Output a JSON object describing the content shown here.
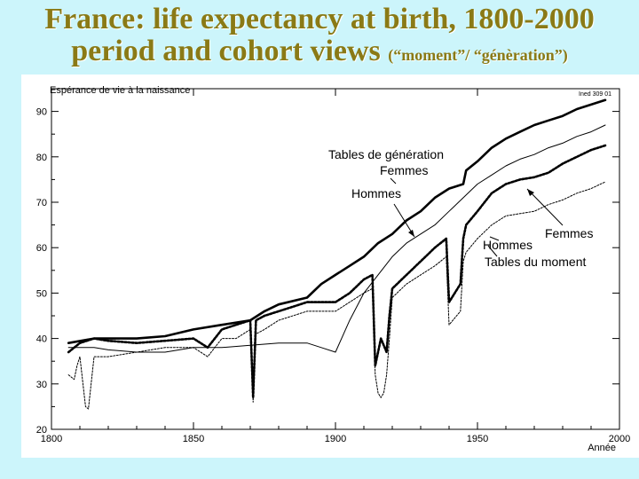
{
  "slide": {
    "title_line1": "France:  life expectancy at birth, 1800-2000",
    "title_line2_main": "period and cohort views ",
    "title_line2_small": "(“moment”/ “génèration”)"
  },
  "chart_data": {
    "type": "line",
    "title": "Espérance de vie à la naissance",
    "source_note": "Ined 309 01",
    "xlabel": "Année",
    "ylabel": "",
    "xlim": [
      1800,
      2000
    ],
    "ylim": [
      20,
      95
    ],
    "xticks": [
      1800,
      1850,
      1900,
      1950,
      2000
    ],
    "yticks": [
      20,
      30,
      40,
      50,
      60,
      70,
      80,
      90
    ],
    "grid": false,
    "annotations": [
      "Tables de génération",
      "Femmes",
      "Hommes",
      "Femmes",
      "Hommes",
      "Tables du moment"
    ],
    "series": [
      {
        "name": "Tables de génération — Femmes",
        "style": "thick-solid",
        "x": [
          1806,
          1815,
          1820,
          1830,
          1840,
          1850,
          1860,
          1870,
          1875,
          1880,
          1890,
          1895,
          1900,
          1905,
          1910,
          1915,
          1920,
          1925,
          1930,
          1935,
          1940,
          1945,
          1946,
          1950,
          1955,
          1960,
          1965,
          1970,
          1975,
          1980,
          1985,
          1990,
          1995
        ],
        "y": [
          39,
          40,
          40,
          40,
          40.5,
          42,
          43,
          44,
          46,
          47.5,
          49,
          52,
          54,
          56,
          58,
          61,
          63,
          66,
          68,
          71,
          73,
          74,
          77,
          79,
          82,
          84,
          85.5,
          87,
          88,
          89,
          90.5,
          91.5,
          92.5
        ]
      },
      {
        "name": "Tables de génération — Hommes",
        "style": "thin-solid",
        "x": [
          1806,
          1815,
          1820,
          1830,
          1840,
          1850,
          1860,
          1870,
          1880,
          1890,
          1895,
          1900,
          1905,
          1910,
          1915,
          1920,
          1925,
          1930,
          1935,
          1940,
          1945,
          1950,
          1955,
          1960,
          1965,
          1970,
          1975,
          1980,
          1985,
          1990,
          1995
        ],
        "y": [
          38,
          38,
          37.5,
          37,
          37,
          38,
          38,
          38.5,
          39,
          39,
          38,
          37,
          44,
          50,
          54,
          58,
          61,
          63,
          65,
          68,
          71,
          74,
          76,
          78,
          79.5,
          80.5,
          82,
          83,
          84.5,
          85.5,
          87
        ]
      },
      {
        "name": "Tables du moment — Femmes",
        "style": "thick-dotted",
        "x": [
          1806,
          1810,
          1815,
          1820,
          1830,
          1840,
          1850,
          1855,
          1860,
          1865,
          1870,
          1871,
          1872,
          1875,
          1880,
          1885,
          1890,
          1895,
          1900,
          1905,
          1910,
          1913,
          1914,
          1916,
          1918,
          1919,
          1920,
          1925,
          1930,
          1935,
          1939,
          1940,
          1944,
          1945,
          1946,
          1950,
          1955,
          1960,
          1965,
          1970,
          1975,
          1980,
          1985,
          1990,
          1995
        ],
        "y": [
          37,
          39,
          40,
          39.5,
          39,
          39.5,
          40,
          38,
          42,
          43,
          44,
          27,
          44,
          45,
          46,
          47,
          48,
          48,
          48,
          50,
          53,
          54,
          34,
          40,
          37,
          45,
          51,
          54,
          57,
          60,
          62,
          48,
          52,
          62,
          65,
          68,
          72,
          74,
          75,
          75.5,
          76.5,
          78.5,
          80,
          81.5,
          82.5
        ]
      },
      {
        "name": "Tables du moment — Hommes",
        "style": "thin-dotted",
        "x": [
          1806,
          1808,
          1809,
          1810,
          1812,
          1813,
          1815,
          1820,
          1830,
          1840,
          1850,
          1855,
          1860,
          1865,
          1870,
          1871,
          1872,
          1875,
          1880,
          1885,
          1890,
          1895,
          1900,
          1905,
          1910,
          1913,
          1914,
          1915,
          1916,
          1917,
          1918,
          1919,
          1920,
          1925,
          1930,
          1935,
          1939,
          1940,
          1944,
          1945,
          1946,
          1950,
          1955,
          1960,
          1965,
          1970,
          1975,
          1980,
          1985,
          1990,
          1995
        ],
        "y": [
          32,
          31,
          34,
          36,
          25,
          24.5,
          36,
          36,
          37,
          38,
          38,
          36,
          40,
          40,
          42,
          26,
          41,
          42,
          44,
          45,
          46,
          46,
          46,
          48,
          50,
          51,
          32,
          28,
          27,
          28,
          32,
          40,
          49,
          52,
          54,
          56,
          58,
          43,
          46,
          57,
          59,
          62,
          65,
          67,
          67.5,
          68,
          69.5,
          70.5,
          72,
          73,
          74.5
        ]
      }
    ]
  }
}
